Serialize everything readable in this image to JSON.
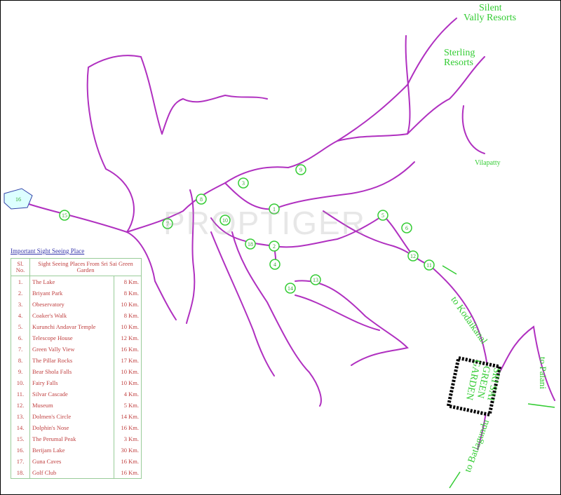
{
  "labels": {
    "silent_valley": [
      "Silent",
      "Vally Resorts"
    ],
    "sterling": [
      "Sterling",
      "Resorts"
    ],
    "vilapatty": "Vilapatty",
    "to_kodaikanal": "to Kodaikanal",
    "to_palani": "to Palani",
    "to_batlagundu": "to Batlagundu",
    "hotel": [
      "SRI SAI",
      "GREEN",
      "GARDEN"
    ],
    "watermark": "PROPTIGER"
  },
  "colors": {
    "road": "#b030c0",
    "marker": "#33cc33",
    "text_green": "#33cc33",
    "table_text": "#c04040",
    "table_border": "#99cc99"
  },
  "markers": [
    "1",
    "2",
    "3",
    "4",
    "5",
    "6",
    "7",
    "8",
    "9",
    "10",
    "11",
    "12",
    "13",
    "14",
    "15",
    "16",
    "18"
  ],
  "table": {
    "title": "Important Sight Seeing Place",
    "headers": {
      "no": "Sl. No.",
      "place": "Sight Seeing Places From Sri Sai Green Garden"
    },
    "rows": [
      {
        "no": "1.",
        "place": "The Lake",
        "dist": "8 Km."
      },
      {
        "no": "2.",
        "place": "Briyant Park",
        "dist": "8 Km."
      },
      {
        "no": "3.",
        "place": "Obeservatory",
        "dist": "10 Km."
      },
      {
        "no": "4.",
        "place": "Coaker's Walk",
        "dist": "8 Km."
      },
      {
        "no": "5.",
        "place": "Kurunchi Andavar Temple",
        "dist": "10 Km."
      },
      {
        "no": "6.",
        "place": "Telescope House",
        "dist": "12 Km."
      },
      {
        "no": "7.",
        "place": "Green Vally View",
        "dist": "16 Km."
      },
      {
        "no": "8.",
        "place": "The Pillar Rocks",
        "dist": "17 Km."
      },
      {
        "no": "9.",
        "place": "Bear Shola Falls",
        "dist": "10 Km."
      },
      {
        "no": "10.",
        "place": "Fairy Falls",
        "dist": "10 Km."
      },
      {
        "no": "11.",
        "place": "Silvar Cascade",
        "dist": "4 Km."
      },
      {
        "no": "12.",
        "place": "Museum",
        "dist": "5 Km."
      },
      {
        "no": "13.",
        "place": "Dolmen's Circle",
        "dist": "14 Km."
      },
      {
        "no": "14.",
        "place": "Dolphin's Nose",
        "dist": "16 Km."
      },
      {
        "no": "15.",
        "place": "The Perumal Peak",
        "dist": "3 Km."
      },
      {
        "no": "16.",
        "place": "Berijam Lake",
        "dist": "30 Km."
      },
      {
        "no": "17.",
        "place": "Guna Caves",
        "dist": "16 Km."
      },
      {
        "no": "18.",
        "place": "Golf Club",
        "dist": "16 Km."
      }
    ]
  }
}
